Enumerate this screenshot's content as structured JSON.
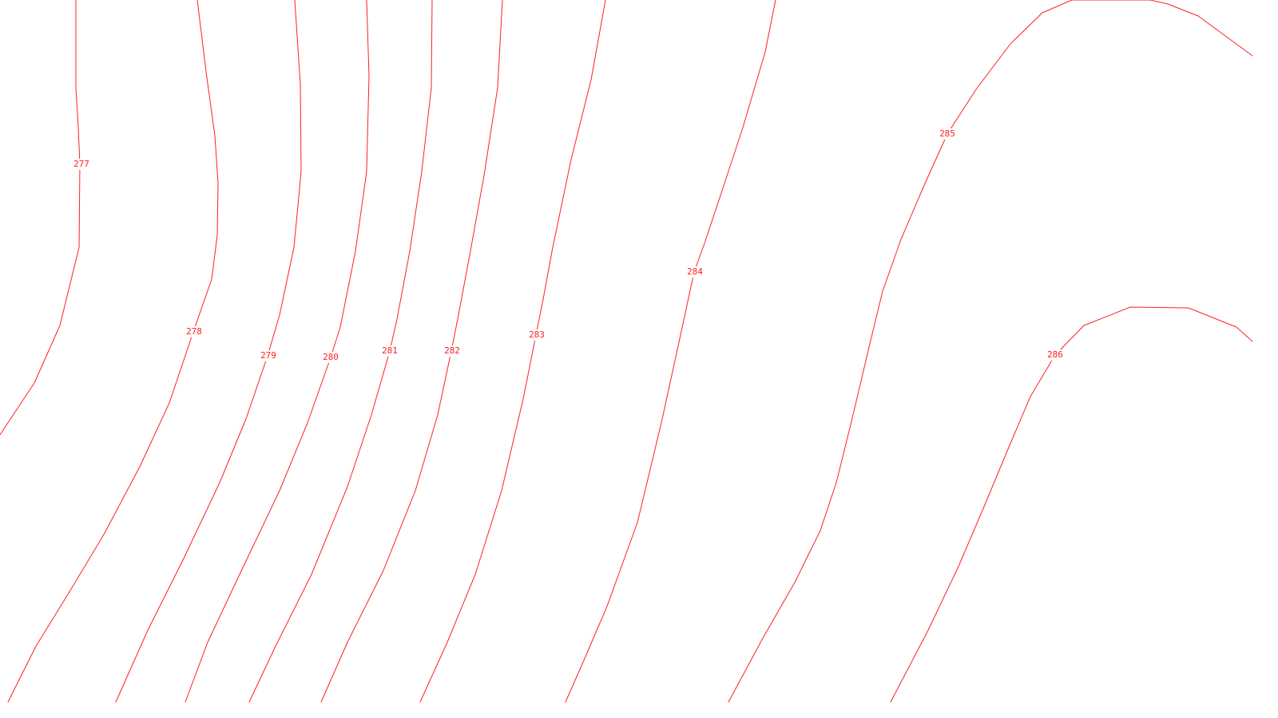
{
  "map": {
    "line_color": "#ff2020",
    "background_color": "#ffffff",
    "contours": [
      {
        "id": "277",
        "label": "277"
      },
      {
        "id": "278",
        "label": "278"
      },
      {
        "id": "279",
        "label": "279"
      },
      {
        "id": "280",
        "label": "280"
      },
      {
        "id": "281",
        "label": "281"
      },
      {
        "id": "282",
        "label": "282"
      },
      {
        "id": "283",
        "label": "283"
      },
      {
        "id": "284",
        "label": "284"
      },
      {
        "id": "285",
        "label": "285"
      },
      {
        "id": "286",
        "label": "286"
      }
    ]
  }
}
